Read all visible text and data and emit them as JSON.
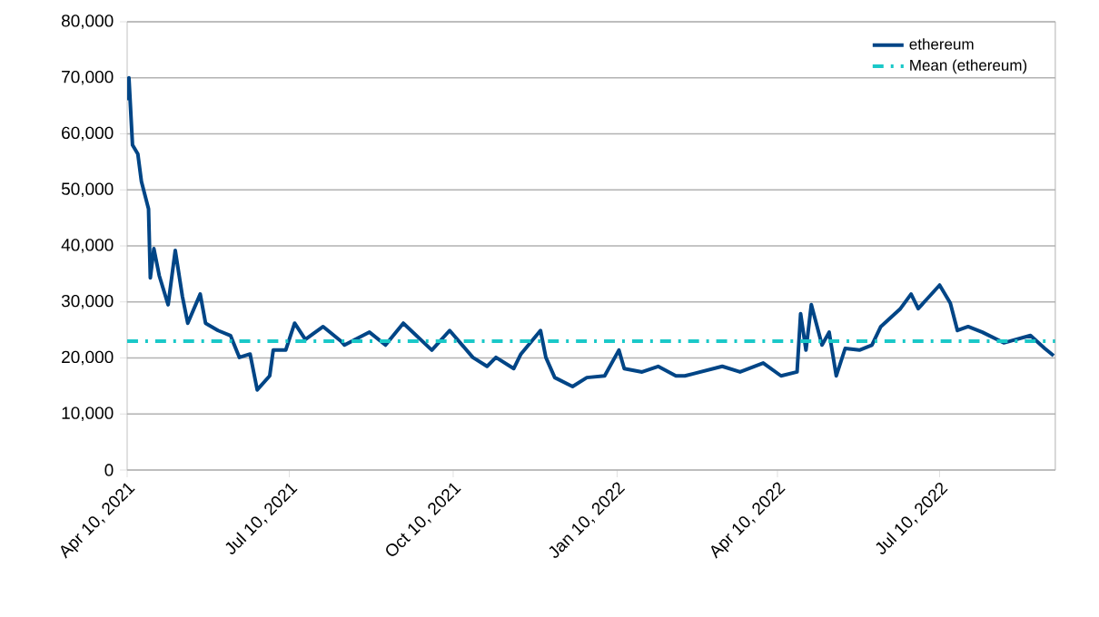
{
  "chart_data": {
    "type": "line",
    "x": [
      "2021-04-10",
      "2021-04-11",
      "2021-04-13",
      "2021-04-16",
      "2021-04-18",
      "2021-04-22",
      "2021-04-23",
      "2021-04-25",
      "2021-04-28",
      "2021-05-03",
      "2021-05-07",
      "2021-05-11",
      "2021-05-14",
      "2021-05-21",
      "2021-05-24",
      "2021-05-31",
      "2021-06-07",
      "2021-06-12",
      "2021-06-18",
      "2021-06-22",
      "2021-06-29",
      "2021-07-01",
      "2021-07-08",
      "2021-07-13",
      "2021-07-19",
      "2021-07-29",
      "2021-08-08",
      "2021-08-10",
      "2021-08-24",
      "2021-09-02",
      "2021-09-12",
      "2021-09-28",
      "2021-10-08",
      "2021-10-21",
      "2021-10-29",
      "2021-11-03",
      "2021-11-13",
      "2021-11-17",
      "2021-11-28",
      "2021-12-01",
      "2021-12-06",
      "2021-12-16",
      "2021-12-24",
      "2022-01-03",
      "2022-01-11",
      "2022-01-14",
      "2022-01-24",
      "2022-02-02",
      "2022-02-12",
      "2022-02-17",
      "2022-03-10",
      "2022-03-20",
      "2022-04-02",
      "2022-04-12",
      "2022-04-21",
      "2022-04-23",
      "2022-04-26",
      "2022-04-29",
      "2022-05-05",
      "2022-05-09",
      "2022-05-13",
      "2022-05-18",
      "2022-05-26",
      "2022-06-02",
      "2022-06-07",
      "2022-06-18",
      "2022-06-24",
      "2022-06-28",
      "2022-07-10",
      "2022-07-16",
      "2022-07-20",
      "2022-07-26",
      "2022-08-03",
      "2022-08-15",
      "2022-08-30",
      "2022-09-07",
      "2022-09-12"
    ],
    "series": [
      {
        "name": "ethereum",
        "color": "#004586",
        "values": [
          66000,
          70000,
          58000,
          56400,
          51500,
          46600,
          34300,
          39500,
          34700,
          29500,
          39200,
          31000,
          26200,
          31400,
          26200,
          24900,
          24000,
          20100,
          20700,
          14300,
          16800,
          21400,
          21400,
          26200,
          23300,
          25600,
          23000,
          22300,
          24600,
          22300,
          26200,
          21400,
          24900,
          20100,
          18500,
          20100,
          18100,
          20700,
          24900,
          20100,
          16500,
          14900,
          16500,
          16800,
          21400,
          18100,
          17500,
          18500,
          16800,
          16800,
          18500,
          17500,
          19100,
          16800,
          17500,
          27900,
          21400,
          29500,
          22300,
          24600,
          16800,
          21700,
          21400,
          22300,
          25600,
          28800,
          31400,
          28800,
          33000,
          29800,
          24900,
          25600,
          24600,
          22700,
          24000,
          21700,
          20400
        ]
      }
    ],
    "ref_lines": [
      {
        "axis": "y",
        "value": 23000,
        "label": "Mean (ethereum)",
        "color": "#1ac8c8",
        "line_style": "dashdot"
      }
    ],
    "xlim": [
      "2021-04-10",
      "2022-09-13"
    ],
    "xticks": [
      {
        "value": "2021-04-10",
        "label": "Apr 10, 2021"
      },
      {
        "value": "2021-07-10",
        "label": "Jul 10, 2021"
      },
      {
        "value": "2021-10-10",
        "label": "Oct 10, 2021"
      },
      {
        "value": "2022-01-10",
        "label": "Jan 10, 2022"
      },
      {
        "value": "2022-04-10",
        "label": "Apr 10, 2022"
      },
      {
        "value": "2022-07-10",
        "label": "Jul 10, 2022"
      }
    ],
    "ylim": [
      0,
      80000
    ],
    "yticks": [
      {
        "value": 0,
        "label": "0"
      },
      {
        "value": 10000,
        "label": "10,000"
      },
      {
        "value": 20000,
        "label": "20,000"
      },
      {
        "value": 30000,
        "label": "30,000"
      },
      {
        "value": 40000,
        "label": "40,000"
      },
      {
        "value": 50000,
        "label": "50,000"
      },
      {
        "value": 60000,
        "label": "60,000"
      },
      {
        "value": 70000,
        "label": "70,000"
      },
      {
        "value": 80000,
        "label": "80,000"
      }
    ],
    "grid": "y",
    "legend": "top right",
    "marker": "none",
    "line_style": "solid"
  }
}
